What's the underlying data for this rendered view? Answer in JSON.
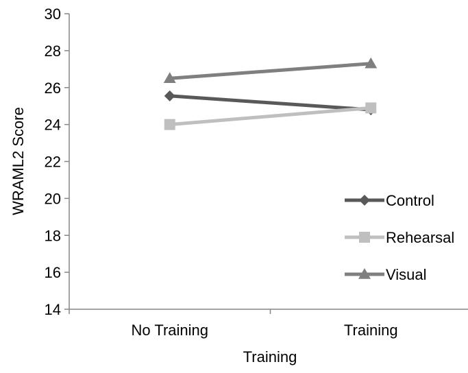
{
  "chart_data": {
    "type": "line",
    "title": "",
    "xlabel": "Training",
    "ylabel": "WRAML2 Score",
    "categories": [
      "No Training",
      "Training"
    ],
    "ylim": [
      14,
      30
    ],
    "yticks": [
      "14",
      "16",
      "18",
      "20",
      "22",
      "24",
      "26",
      "28",
      "30"
    ],
    "grid": false,
    "legend_position": "right",
    "series": [
      {
        "name": "Control",
        "values": [
          25.55,
          24.8
        ],
        "color": "#595959",
        "marker": "diamond"
      },
      {
        "name": "Rehearsal",
        "values": [
          24.0,
          24.9
        ],
        "color": "#bfbfbf",
        "marker": "square"
      },
      {
        "name": "Visual",
        "values": [
          26.5,
          27.3
        ],
        "color": "#7f7f7f",
        "marker": "triangle"
      }
    ]
  }
}
